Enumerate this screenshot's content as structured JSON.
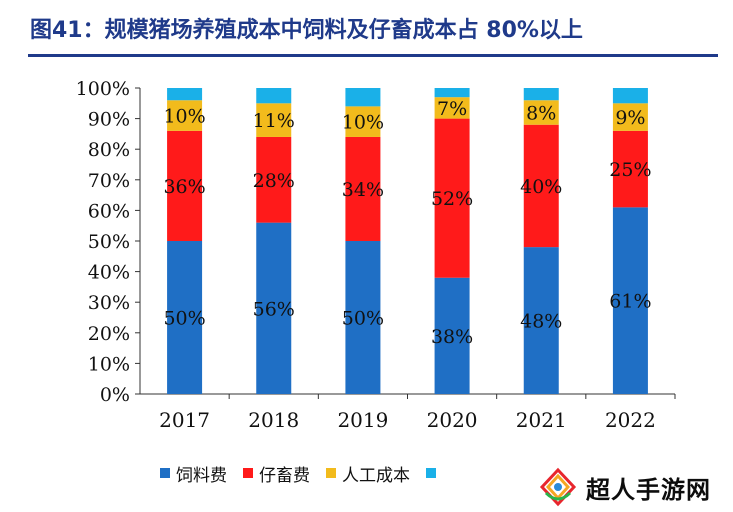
{
  "title": "图41：规模猪场养殖成本中饲料及仔畜成本占 80%以上",
  "colors": {
    "title": "#1f3a8a",
    "feed": "#1f6fc5",
    "piglet": "#ff1a1a",
    "labor": "#f2bb1c",
    "other": "#1ab0e8"
  },
  "chart_data": {
    "type": "bar",
    "stacked": true,
    "categories": [
      "2017",
      "2018",
      "2019",
      "2020",
      "2021",
      "2022"
    ],
    "series": [
      {
        "name": "饲料费",
        "values": [
          50,
          56,
          50,
          38,
          48,
          61
        ],
        "labels": [
          "50%",
          "56%",
          "50%",
          "38%",
          "48%",
          "61%"
        ]
      },
      {
        "name": "仔畜费",
        "values": [
          36,
          28,
          34,
          52,
          40,
          25
        ],
        "labels": [
          "36%",
          "28%",
          "34%",
          "52%",
          "40%",
          "25%"
        ]
      },
      {
        "name": "人工成本",
        "values": [
          10,
          11,
          10,
          7,
          8,
          9
        ],
        "labels": [
          "10%",
          "11%",
          "10%",
          "7%",
          "8%",
          "9%"
        ]
      },
      {
        "name": "",
        "values": [
          4,
          5,
          6,
          3,
          4,
          5
        ]
      }
    ],
    "yticks": [
      "0%",
      "10%",
      "20%",
      "30%",
      "40%",
      "50%",
      "60%",
      "70%",
      "80%",
      "90%",
      "100%"
    ],
    "ylim": [
      0,
      100
    ],
    "xlabel": "",
    "ylabel": "",
    "grid": false,
    "legend": "bottom"
  },
  "watermark": {
    "text": "超人手游网",
    "icon": "game-controller-logo"
  }
}
